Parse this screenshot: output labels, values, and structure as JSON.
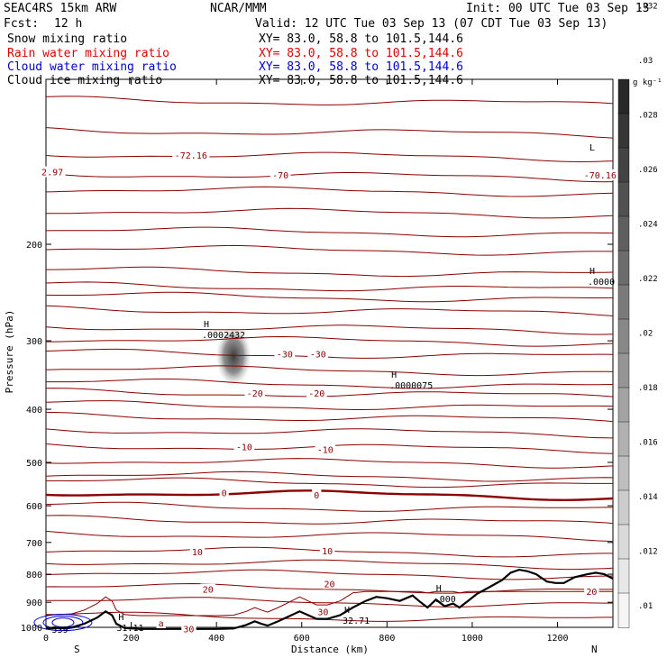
{
  "header": {
    "model": "SEAC4RS 15km ARW",
    "org": "NCAR/MMM",
    "init": "Init: 00 UTC Tue 03 Sep 13",
    "fcst_label": "Fcst:",
    "fcst_value": "12 h",
    "valid": "Valid: 12 UTC Tue 03 Sep 13 (07 CDT Tue 03 Sep 13)"
  },
  "fields": [
    {
      "name": "Snow mixing ratio",
      "xy": "XY=  83.0, 58.8 to 101.5,144.6",
      "color": "#000000"
    },
    {
      "name": "Rain water mixing ratio",
      "xy": "XY=  83.0, 58.8 to 101.5,144.6",
      "color": "#e00000"
    },
    {
      "name": "Cloud water mixing ratio",
      "xy": "XY=  83.0, 58.8 to 101.5,144.6",
      "color": "#0000d0"
    },
    {
      "name": "Cloud ice mixing ratio",
      "xy": "XY=  83.0, 58.8 to 101.5,144.6",
      "color": "#000000"
    }
  ],
  "colors": {
    "temperature_contour": "#8b0000",
    "terrain": "#000000",
    "rain_label": "#e00000",
    "cloud_water": "#0000d0"
  },
  "chart_data": {
    "type": "cross-section",
    "xlabel": "Distance (km)",
    "ylabel": "Pressure (hPa)",
    "xlim": [
      0,
      1330
    ],
    "ylim": [
      1000,
      100
    ],
    "y_scale": "log",
    "x_ticks": [
      0,
      200,
      400,
      600,
      800,
      1000,
      1200
    ],
    "y_ticks": [
      200,
      300,
      400,
      500,
      600,
      700,
      800,
      900,
      1000
    ],
    "x_end_labels": {
      "left": "S",
      "right": "N"
    },
    "colorbar": {
      "unit": "g kg⁻¹",
      "ticks": [
        ".01",
        ".012",
        ".014",
        ".016",
        ".018",
        ".02",
        ".022",
        ".024",
        ".026",
        ".028",
        ".03",
        ".032"
      ]
    },
    "contour_labels": [
      {
        "text": "-72.16",
        "x": 340,
        "p": 138
      },
      {
        "text": "-70",
        "x": 550,
        "p": 150
      },
      {
        "text": "-70.16",
        "x": 1300,
        "p": 150
      },
      {
        "text": "2.97",
        "x": 15,
        "p": 148
      },
      {
        "text": "-30",
        "x": 560,
        "p": 318
      },
      {
        "text": "-30",
        "x": 638,
        "p": 318
      },
      {
        "text": "-20",
        "x": 490,
        "p": 375
      },
      {
        "text": "-20",
        "x": 635,
        "p": 375
      },
      {
        "text": "-10",
        "x": 465,
        "p": 470
      },
      {
        "text": "-10",
        "x": 655,
        "p": 475
      },
      {
        "text": "0",
        "x": 418,
        "p": 570
      },
      {
        "text": "0",
        "x": 635,
        "p": 575
      },
      {
        "text": "10",
        "x": 355,
        "p": 730
      },
      {
        "text": "10",
        "x": 660,
        "p": 728
      },
      {
        "text": "20",
        "x": 380,
        "p": 855
      },
      {
        "text": "20",
        "x": 665,
        "p": 835
      },
      {
        "text": "20",
        "x": 1280,
        "p": 862
      },
      {
        "text": "30",
        "x": 650,
        "p": 940
      },
      {
        "text": "30",
        "x": 335,
        "p": 1010
      },
      {
        "text": "a",
        "x": 270,
        "p": 985
      }
    ],
    "highs_lows": [
      {
        "symbol": "L",
        "value": "",
        "x": 1275,
        "p": 138
      },
      {
        "symbol": "H",
        "value": ".0000",
        "x": 1275,
        "p": 232
      },
      {
        "symbol": "H",
        "value": ".0002432",
        "x": 370,
        "p": 290
      },
      {
        "symbol": "H",
        "value": ".0000075",
        "x": 810,
        "p": 358
      },
      {
        "symbol": "H",
        "value": ".000",
        "x": 915,
        "p": 880
      },
      {
        "symbol": "H",
        "value": "32.71",
        "x": 700,
        "p": 962
      },
      {
        "symbol": "H",
        "value": "31.11",
        "x": 170,
        "p": 992
      },
      {
        "symbol": "",
        "value": "539",
        "x": 18,
        "p": 1000
      }
    ],
    "isotherms_degC": [
      -70,
      -60,
      -50,
      -40,
      -30,
      -20,
      -10,
      0,
      10,
      20,
      30
    ],
    "max_snow_mixing_ratio": ".0002432"
  }
}
